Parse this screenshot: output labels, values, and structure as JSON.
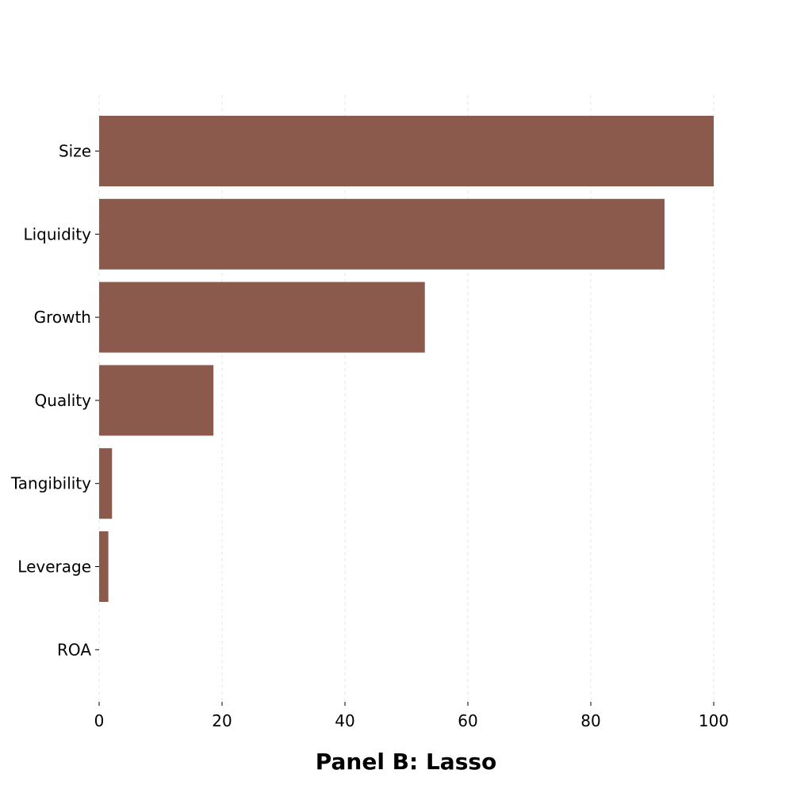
{
  "chart_data": {
    "type": "bar",
    "orientation": "horizontal",
    "title": "Panel B: Lasso",
    "xlabel": "",
    "ylabel": "",
    "categories": [
      "Size",
      "Liquidity",
      "Growth",
      "Quality",
      "Tangibility",
      "Leverage",
      "ROA"
    ],
    "values": [
      100,
      92,
      53,
      18.6,
      2.1,
      1.5,
      0
    ],
    "xlim": [
      0,
      100
    ],
    "xticks": [
      0,
      20,
      40,
      60,
      80,
      100
    ],
    "grid": "vertical-dashed",
    "legend": "none",
    "bar_color": "#8b5a4d"
  }
}
